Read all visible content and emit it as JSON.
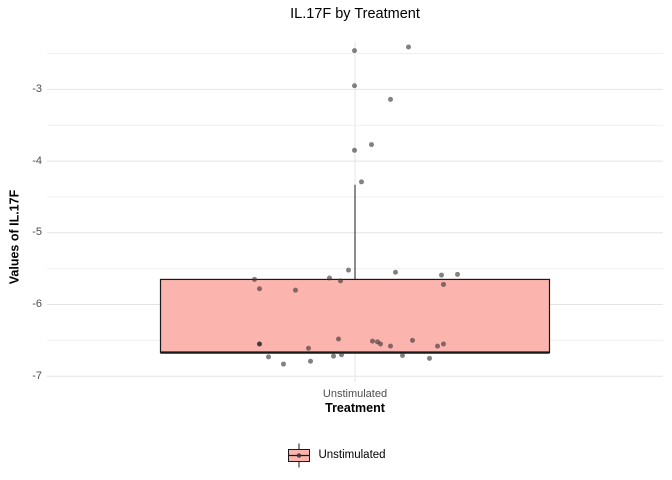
{
  "chart_data": {
    "type": "boxplot",
    "title": "IL.17F by Treatment",
    "xlabel": "Treatment",
    "ylabel": "Values of IL.17F",
    "categories": [
      "Unstimulated"
    ],
    "ylim": [
      -7.08,
      -2.34
    ],
    "yticks": [
      -3,
      -4,
      -5,
      -6,
      -7
    ],
    "yticks_minor": [
      -2.5,
      -3.5,
      -4.5,
      -5.5,
      -6.5
    ],
    "grid": true,
    "legend_position": "bottom",
    "series": [
      {
        "name": "Unstimulated",
        "fill": "#FBB4AE",
        "box": {
          "whisker_low": -6.67,
          "q1": -6.67,
          "median": -6.67,
          "q3": -5.65,
          "whisker_high": -4.33
        },
        "points": [
          [
            -0.5,
            -2.46
          ],
          [
            53.5,
            -2.41
          ],
          [
            -0.5,
            -2.95
          ],
          [
            35.5,
            -3.14
          ],
          [
            16.5,
            -3.77
          ],
          [
            -0.5,
            -3.85
          ],
          [
            6.5,
            -4.29
          ],
          [
            -100.5,
            -5.65
          ],
          [
            -95.5,
            -5.78
          ],
          [
            -59.5,
            -5.8
          ],
          [
            -25.5,
            -5.63
          ],
          [
            -14.5,
            -5.67
          ],
          [
            -6.5,
            -5.52
          ],
          [
            40.5,
            -5.55
          ],
          [
            86.5,
            -5.59
          ],
          [
            102.5,
            -5.58
          ],
          [
            88.5,
            -5.72
          ],
          [
            -95.5,
            -6.55,
            1
          ],
          [
            -86.5,
            -6.73
          ],
          [
            -71.5,
            -6.83
          ],
          [
            -46.5,
            -6.61
          ],
          [
            -44.5,
            -6.79
          ],
          [
            -21.5,
            -6.72
          ],
          [
            -13.5,
            -6.7
          ],
          [
            -16.5,
            -6.48
          ],
          [
            17.5,
            -6.51
          ],
          [
            22.5,
            -6.52
          ],
          [
            25.5,
            -6.55
          ],
          [
            35.5,
            -6.58
          ],
          [
            57.5,
            -6.5
          ],
          [
            82.5,
            -6.58
          ],
          [
            88.5,
            -6.55
          ],
          [
            47.5,
            -6.71
          ],
          [
            74.5,
            -6.75
          ]
        ]
      }
    ]
  },
  "legend": {
    "items": [
      {
        "label": "Unstimulated",
        "fill": "#FBB4AE"
      }
    ]
  },
  "colors": {
    "box_fill": "#FBB4AE",
    "box_border": "#1A1A1A",
    "point": "#3C3434",
    "grid_major": "#E4E4E4",
    "grid_minor": "#F0F0F0",
    "tick_label": "#4D4D4D",
    "title": "#000000",
    "background": "#FFFFFF"
  }
}
